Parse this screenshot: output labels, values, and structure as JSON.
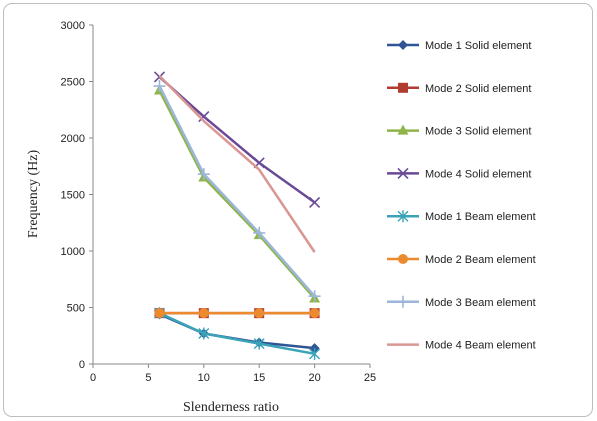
{
  "chart_data": {
    "type": "line",
    "title": "",
    "xlabel": "Slenderness ratio",
    "ylabel": "Frequency (Hz)",
    "xlim": [
      0,
      25
    ],
    "ylim": [
      0,
      3000
    ],
    "x_ticks": [
      "0",
      "5",
      "10",
      "15",
      "20",
      "25"
    ],
    "y_ticks": [
      "0",
      "500",
      "1000",
      "1500",
      "2000",
      "2500",
      "3000"
    ],
    "grid": false,
    "legend_position": "right",
    "x": [
      6,
      10,
      15,
      20
    ],
    "series": [
      {
        "name": "Mode 1 Solid element",
        "values": [
          440,
          270,
          190,
          140
        ],
        "color": "#2f5597",
        "marker": "diamond"
      },
      {
        "name": "Mode 2 Solid element",
        "values": [
          450,
          450,
          450,
          450
        ],
        "color": "#b23b30",
        "marker": "square"
      },
      {
        "name": "Mode 3 Solid element",
        "values": [
          2420,
          1650,
          1140,
          580
        ],
        "color": "#8fb54a",
        "marker": "triangle"
      },
      {
        "name": "Mode 4 Solid element",
        "values": [
          2540,
          2190,
          1780,
          1430
        ],
        "color": "#6a4a96",
        "marker": "x"
      },
      {
        "name": "Mode 1  Beam element",
        "values": [
          450,
          270,
          180,
          90
        ],
        "color": "#3aa3b8",
        "marker": "star"
      },
      {
        "name": "Mode 2  Beam element",
        "values": [
          450,
          450,
          450,
          450
        ],
        "color": "#ec8a2f",
        "marker": "circle"
      },
      {
        "name": "Mode 3  Beam element",
        "values": [
          2460,
          1680,
          1160,
          600
        ],
        "color": "#9bb6d9",
        "marker": "plus"
      },
      {
        "name": "Mode 4  Beam element",
        "values": [
          2550,
          2150,
          1720,
          990
        ],
        "color": "#d99693",
        "marker": "none"
      }
    ]
  }
}
